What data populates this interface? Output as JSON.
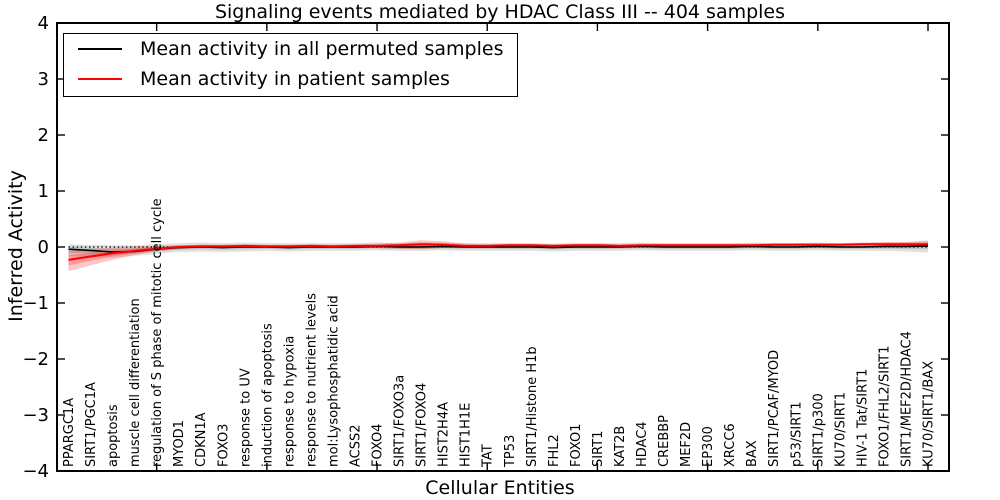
{
  "title": "Signaling events mediated by HDAC Class III -- 404 samples",
  "legend": {
    "items": [
      {
        "label": "Mean activity in all permuted samples",
        "color": "#000000"
      },
      {
        "label": "Mean activity in patient samples",
        "color": "#ff0000"
      }
    ]
  },
  "chart_data": {
    "type": "line",
    "title": "Signaling events mediated by HDAC Class III -- 404 samples",
    "xlabel": "Cellular Entities",
    "ylabel": "Inferred Activity",
    "ylim": [
      -4,
      4
    ],
    "yticks": [
      -4,
      -3,
      -2,
      -1,
      0,
      1,
      2,
      3,
      4
    ],
    "grid": false,
    "legend_position": "upper left",
    "zero_line": "dotted black at y=0",
    "categories": [
      "PPARGC1A",
      "SIRT1/PGC1A",
      "apoptosis",
      "muscle cell differentiation",
      "regulation of S phase of mitotic cell cycle",
      "MYOD1",
      "CDKN1A",
      "FOXO3",
      "response to UV",
      "induction of apoptosis",
      "response to hypoxia",
      "response to nutrient levels",
      "mol:Lysophosphatidic acid",
      "ACSS2",
      "FOXO4",
      "SIRT1/FOXO3a",
      "SIRT1/FOXO4",
      "HIST2H4A",
      "HIST1H1E",
      "TAT",
      "TP53",
      "SIRT1/Histone H1b",
      "FHL2",
      "FOXO1",
      "SIRT1",
      "KAT2B",
      "HDAC4",
      "CREBBP",
      "MEF2D",
      "EP300",
      "XRCC6",
      "BAX",
      "SIRT1/PCAF/MYOD",
      "p53/SIRT1",
      "SIRT1/p300",
      "KU70/SIRT1",
      "HIV-1 Tat/SIRT1",
      "FOXO1/FHL2/SIRT1",
      "SIRT1/MEF2D/HDAC4",
      "KU70/SIRT1/BAX"
    ],
    "series": [
      {
        "name": "Mean activity in all permuted samples",
        "color": "#000000",
        "line_width": 1.6,
        "band_color": "rgba(0,0,0,0.12)",
        "values": [
          -0.04,
          -0.06,
          -0.09,
          -0.08,
          -0.04,
          -0.01,
          0.0,
          -0.01,
          0.0,
          0.0,
          -0.01,
          0.0,
          0.0,
          0.0,
          0.01,
          0.0,
          0.0,
          0.01,
          0.0,
          0.0,
          0.0,
          0.0,
          -0.01,
          0.0,
          0.0,
          0.0,
          0.01,
          0.0,
          0.0,
          0.0,
          0.0,
          0.01,
          0.0,
          0.0,
          0.01,
          0.0,
          0.0,
          0.01,
          0.01,
          0.02
        ],
        "band_low": [
          -0.16,
          -0.18,
          -0.19,
          -0.16,
          -0.12,
          -0.09,
          -0.08,
          -0.09,
          -0.08,
          -0.07,
          -0.08,
          -0.07,
          -0.07,
          -0.07,
          -0.06,
          -0.07,
          -0.07,
          -0.06,
          -0.07,
          -0.07,
          -0.07,
          -0.07,
          -0.08,
          -0.07,
          -0.07,
          -0.07,
          -0.06,
          -0.07,
          -0.07,
          -0.07,
          -0.07,
          -0.06,
          -0.07,
          -0.07,
          -0.06,
          -0.07,
          -0.07,
          -0.07,
          -0.08,
          -0.1
        ],
        "band_high": [
          0.05,
          0.04,
          0.03,
          0.03,
          0.05,
          0.07,
          0.08,
          0.07,
          0.08,
          0.07,
          0.07,
          0.07,
          0.07,
          0.07,
          0.08,
          0.07,
          0.07,
          0.08,
          0.07,
          0.07,
          0.07,
          0.07,
          0.06,
          0.07,
          0.07,
          0.07,
          0.08,
          0.07,
          0.07,
          0.07,
          0.07,
          0.08,
          0.07,
          0.07,
          0.08,
          0.07,
          0.07,
          0.08,
          0.09,
          0.12
        ]
      },
      {
        "name": "Mean activity in patient samples",
        "color": "#ff0000",
        "line_width": 2,
        "band_color": "rgba(255,0,0,0.22)",
        "values": [
          -0.23,
          -0.17,
          -0.11,
          -0.07,
          -0.03,
          0.0,
          0.01,
          0.01,
          0.02,
          0.01,
          0.01,
          0.02,
          0.01,
          0.02,
          0.02,
          0.03,
          0.05,
          0.04,
          0.02,
          0.02,
          0.03,
          0.03,
          0.02,
          0.03,
          0.03,
          0.02,
          0.03,
          0.03,
          0.03,
          0.03,
          0.03,
          0.03,
          0.04,
          0.04,
          0.04,
          0.04,
          0.05,
          0.05,
          0.05,
          0.05
        ],
        "band_low": [
          -0.43,
          -0.33,
          -0.23,
          -0.14,
          -0.08,
          -0.04,
          -0.02,
          -0.02,
          -0.01,
          -0.02,
          -0.02,
          -0.01,
          -0.02,
          -0.01,
          -0.02,
          -0.03,
          -0.04,
          -0.02,
          -0.01,
          -0.01,
          -0.01,
          0.0,
          -0.01,
          0.0,
          0.0,
          -0.01,
          0.0,
          0.0,
          0.0,
          0.0,
          0.0,
          0.0,
          0.01,
          0.01,
          0.01,
          0.01,
          0.01,
          0.01,
          0.0,
          0.0
        ],
        "band_high": [
          -0.07,
          -0.04,
          -0.01,
          0.01,
          0.02,
          0.03,
          0.04,
          0.04,
          0.05,
          0.04,
          0.04,
          0.05,
          0.04,
          0.05,
          0.06,
          0.08,
          0.12,
          0.1,
          0.06,
          0.05,
          0.06,
          0.06,
          0.05,
          0.06,
          0.06,
          0.05,
          0.06,
          0.06,
          0.06,
          0.06,
          0.06,
          0.06,
          0.07,
          0.07,
          0.07,
          0.07,
          0.08,
          0.09,
          0.09,
          0.1
        ]
      }
    ]
  }
}
